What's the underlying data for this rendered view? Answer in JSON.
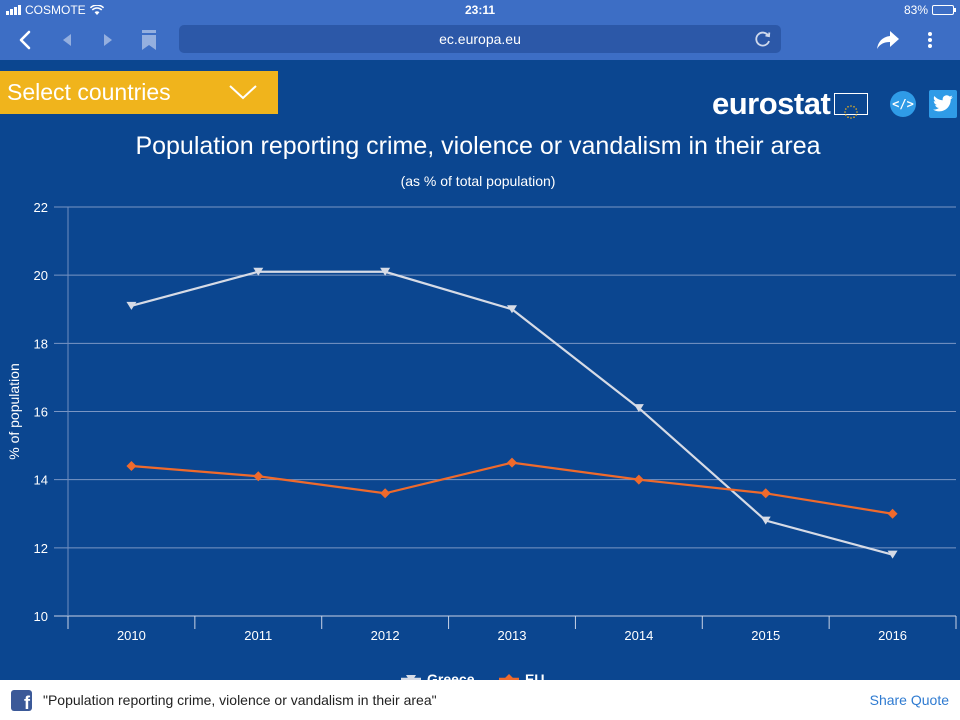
{
  "status_bar": {
    "carrier": "COSMOTE",
    "time": "23:11",
    "battery": "83%",
    "battery_level": 0.83
  },
  "browser": {
    "url": "ec.europa.eu"
  },
  "page": {
    "select_countries_label": "Select countries",
    "logo_text": "eurostat",
    "embed_label": "</>"
  },
  "chart_data": {
    "type": "line",
    "title": "Population reporting crime, violence or vandalism in their area",
    "subtitle": "(as % of total population)",
    "ylabel": "% of population",
    "ylim": [
      10,
      22
    ],
    "yticks": [
      "10",
      "12",
      "14",
      "16",
      "18",
      "20",
      "22"
    ],
    "categories": [
      "2010",
      "2011",
      "2012",
      "2013",
      "2014",
      "2015",
      "2016"
    ],
    "grid": true,
    "legend_position": "bottom",
    "series": [
      {
        "name": "Greece",
        "color": "#d6dbe6",
        "marker": "triangle-down",
        "values": [
          19.1,
          20.1,
          20.1,
          19.0,
          16.1,
          12.8,
          11.8
        ]
      },
      {
        "name": "EU",
        "color": "#ef6a2c",
        "marker": "diamond",
        "values": [
          14.4,
          14.1,
          13.6,
          14.5,
          14.0,
          13.6,
          13.0
        ]
      }
    ]
  },
  "share_bar": {
    "quote_text": "\"Population reporting crime, violence or vandalism in their area\"",
    "button_label": "Share Quote"
  }
}
